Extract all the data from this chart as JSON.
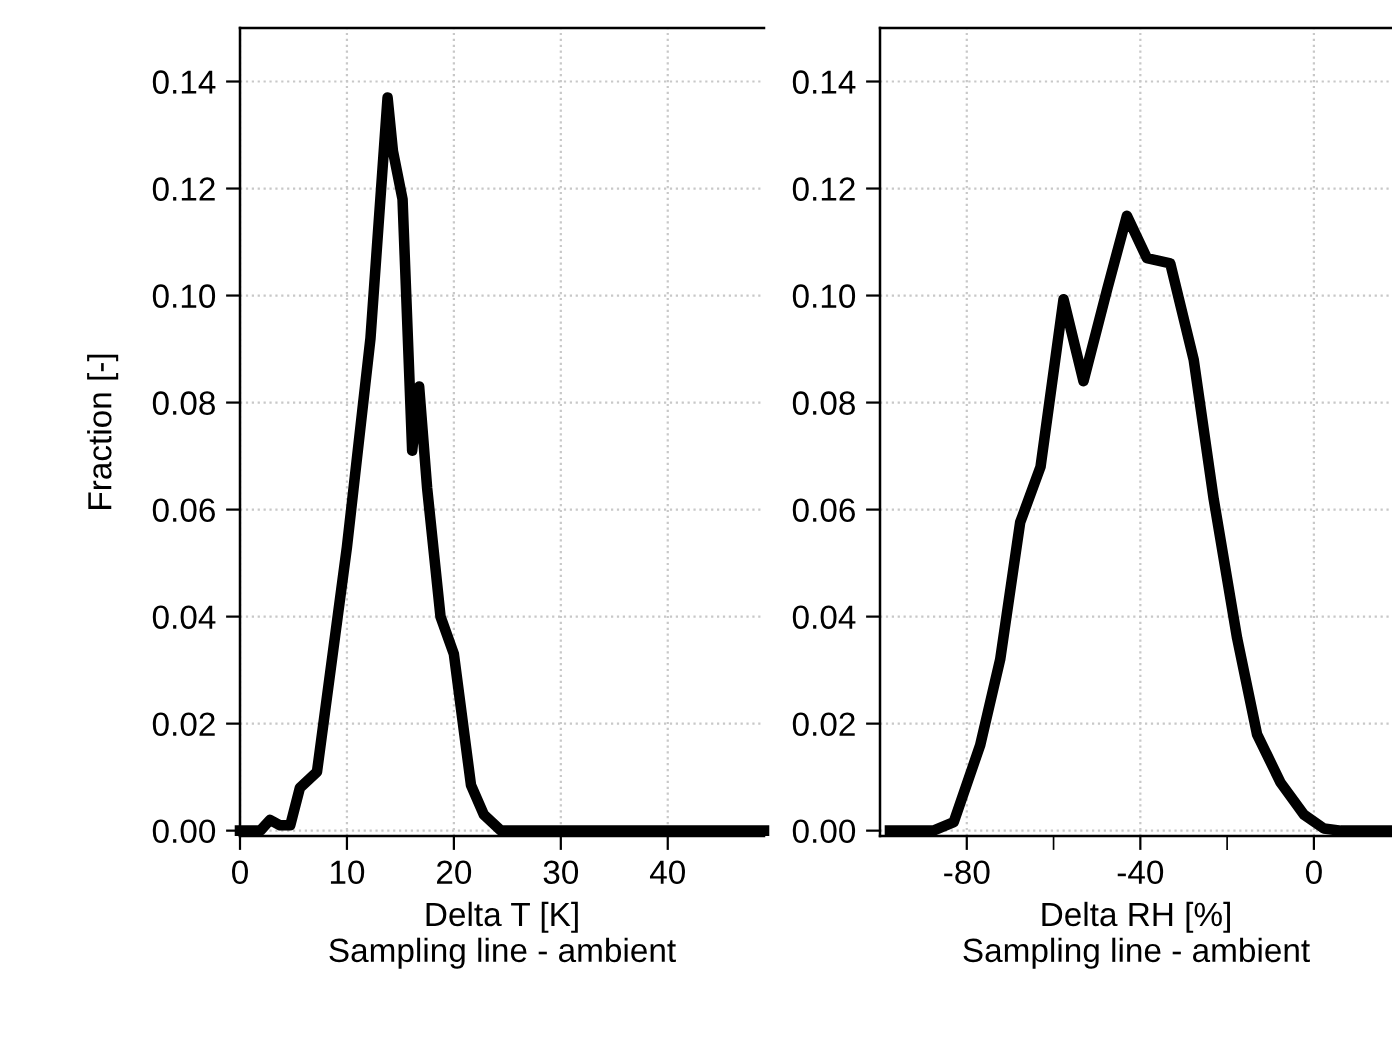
{
  "chart_data": [
    {
      "type": "line",
      "xlabel": "Delta T [K]\nSampling line - ambient",
      "ylabel": "Fraction [-]",
      "grid": true,
      "line_style": "solid",
      "xlim": [
        0,
        49
      ],
      "ylim": [
        -0.001,
        0.15
      ],
      "xticks": [
        0,
        10,
        20,
        30,
        40
      ],
      "yticks": [
        {
          "value": 0,
          "label": "0.00"
        },
        {
          "value": 0.02,
          "label": "0.02"
        },
        {
          "value": 0.04,
          "label": "0.04"
        },
        {
          "value": 0.06,
          "label": "0.06"
        },
        {
          "value": 0.08,
          "label": "0.08"
        },
        {
          "value": 0.1,
          "label": "0.10"
        },
        {
          "value": 0.12,
          "label": "0.12"
        },
        {
          "value": 0.14,
          "label": "0.14"
        }
      ],
      "series": [
        {
          "color": "#000000",
          "x": [
            0,
            1.9,
            2.8,
            3.75,
            4.7,
            5.6,
            7.2,
            10,
            12.2,
            13.8,
            14.3,
            15.2,
            16.1,
            16.75,
            17.5,
            18.75,
            20,
            21.6,
            22.8,
            24.4,
            49
          ],
          "values": [
            0,
            0,
            0.002,
            0.001,
            0.001,
            0.008,
            0.011,
            0.053,
            0.092,
            0.137,
            0.127,
            0.118,
            0.071,
            0.083,
            0.064,
            0.04,
            0.033,
            0.0085,
            0.003,
            0,
            0
          ]
        }
      ]
    },
    {
      "type": "line",
      "xlabel": "Delta RH [%]\nSampling line - ambient",
      "grid": true,
      "line_style": "solid",
      "xlim": [
        -100,
        18
      ],
      "ylim": [
        -0.001,
        0.15
      ],
      "xticks": [
        -80,
        {
          "value": -60,
          "label": null
        },
        -40,
        {
          "value": -20,
          "label": null
        },
        0
      ],
      "yticks": [
        {
          "value": 0,
          "label": "0.00"
        },
        {
          "value": 0.02,
          "label": "0.02"
        },
        {
          "value": 0.04,
          "label": "0.04"
        },
        {
          "value": 0.06,
          "label": "0.06"
        },
        {
          "value": 0.08,
          "label": "0.08"
        },
        {
          "value": 0.1,
          "label": "0.10"
        },
        {
          "value": 0.12,
          "label": "0.12"
        },
        {
          "value": 0.14,
          "label": "0.14"
        }
      ],
      "series": [
        {
          "color": "#000000",
          "x": [
            -97.7,
            -87.7,
            -83,
            -76.9,
            -72.3,
            -67.7,
            -63,
            -57.7,
            -53.1,
            -47.7,
            -43.1,
            -38.5,
            -33.1,
            -27.7,
            -23.1,
            -17.7,
            -13.1,
            -7.7,
            -2.3,
            2.3,
            6.2,
            18
          ],
          "values": [
            0,
            0,
            0.0016,
            0.016,
            0.032,
            0.0576,
            0.068,
            0.0993,
            0.084,
            0.101,
            0.1149,
            0.107,
            0.106,
            0.088,
            0.062,
            0.036,
            0.018,
            0.009,
            0.003,
            0.0004,
            0,
            0
          ]
        }
      ]
    }
  ]
}
